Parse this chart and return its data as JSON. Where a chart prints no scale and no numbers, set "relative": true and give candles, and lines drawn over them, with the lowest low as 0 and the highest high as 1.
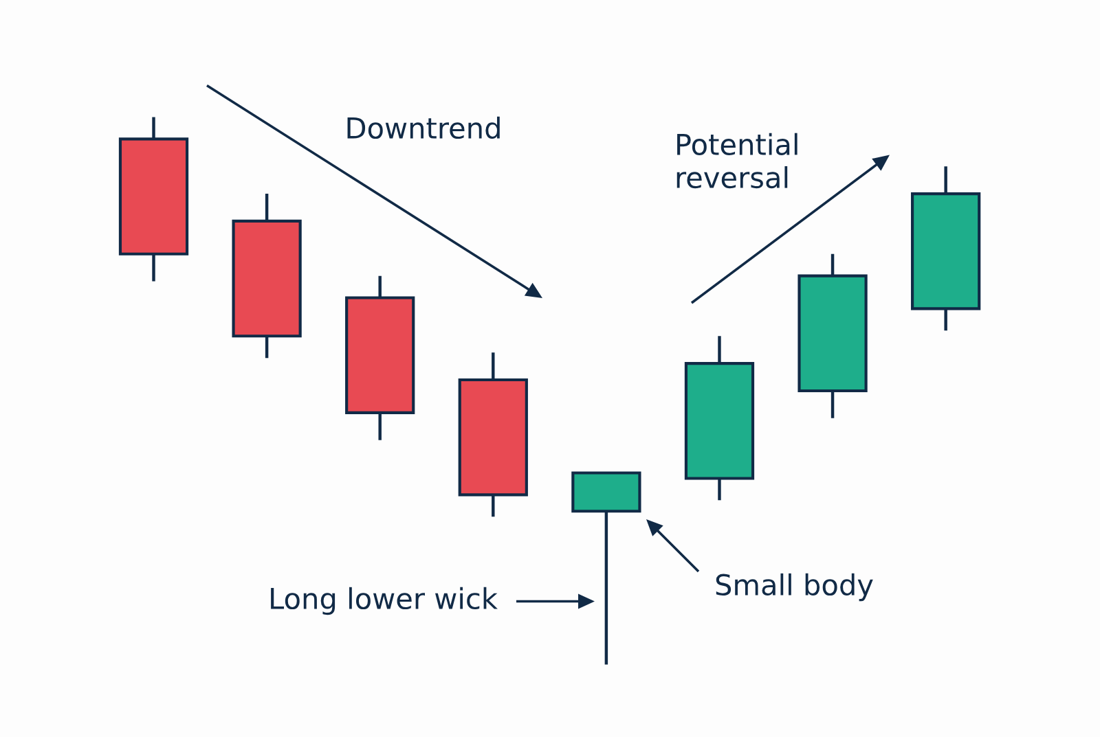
{
  "chart_data": {
    "type": "candlestick",
    "relative": true,
    "categories": [
      null,
      null,
      null,
      null,
      null,
      null,
      null,
      null
    ],
    "ohlc": [
      [
        0.96,
        1.0,
        0.7,
        0.75
      ],
      [
        0.81,
        0.86,
        0.56,
        0.6
      ],
      [
        0.67,
        0.71,
        0.41,
        0.46
      ],
      [
        0.52,
        0.57,
        0.27,
        0.31
      ],
      [
        0.28,
        0.35,
        0.0,
        0.35
      ],
      [
        0.34,
        0.6,
        0.3,
        0.55
      ],
      [
        0.5,
        0.75,
        0.45,
        0.71
      ],
      [
        0.65,
        0.91,
        0.61,
        0.86
      ]
    ],
    "colors": [
      "#e84a53",
      "#e84a53",
      "#e84a53",
      "#e84a53",
      "#1eae8b",
      "#1eae8b",
      "#1eae8b",
      "#1eae8b"
    ],
    "annotations": [
      "Downtrend",
      "Potential\nreversal",
      "Long lower wick",
      "Small body"
    ]
  }
}
